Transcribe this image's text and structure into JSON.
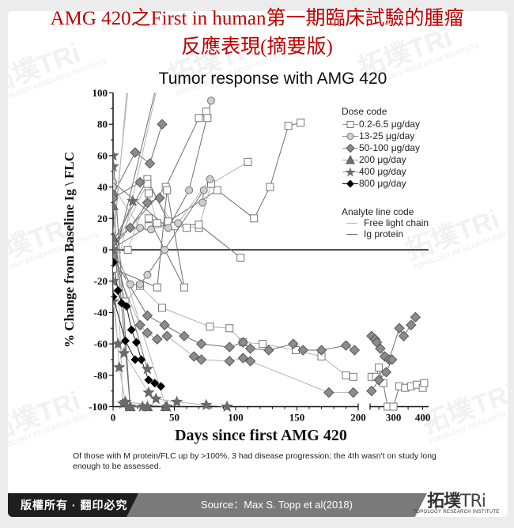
{
  "page": {
    "title_line1": "AMG 420之First in human第一期臨床試驗的腫瘤",
    "title_line2": "反應表現(摘要版)",
    "note": "Of those with M protein/FLC up by >100%, 3 had disease progression; the 4th wasn't on study long enough to be assessed.",
    "footer": {
      "copyright": "版權所有 · 翻印必究",
      "source": "Source：Max S. Topp et al(2018)",
      "logo_zh": "拓墣",
      "logo_tri": "TRi",
      "logo_en": "TOPOLOGY RESEARCH INSTITUTE"
    },
    "watermark": {
      "zh": "拓墣TRi",
      "en": "TOPOLOGY RESEARCH INSTITUTE"
    },
    "colors": {
      "title": "#c00000",
      "diamond": "#8c8c8c",
      "triangle": "#707070",
      "star": "#6a6a6a",
      "circle": "#cfcfcf",
      "footer_dark": "#1e1e1e",
      "footer_mid": "#7a7a7a"
    }
  },
  "legend": {
    "dose_title": "Dose code",
    "dose_items": [
      {
        "label": "0.2-6.5 μg/day",
        "marker": "open-square"
      },
      {
        "label": "13-25 μg/day",
        "marker": "gray-circle"
      },
      {
        "label": "50-100 μg/day",
        "marker": "gray-diamond"
      },
      {
        "label": "200 μg/day",
        "marker": "gray-triangle"
      },
      {
        "label": "400 μg/day",
        "marker": "gray-star"
      },
      {
        "label": "800 μg/day",
        "marker": "black-diamond"
      }
    ],
    "analyte_title": "Analyte line code",
    "analyte_items": [
      {
        "label": "Free light chain",
        "line_color": "#b0b0b0"
      },
      {
        "label": "Ig protein",
        "line_color": "#707070"
      }
    ]
  },
  "chart_data": {
    "type": "line",
    "title": "Tumor response with AMG 420",
    "xlabel": "Days since first AMG 420",
    "ylabel": "% Change from Baseline  Ig \\ FLC",
    "ylim": [
      -100,
      100
    ],
    "yticks": [
      100,
      80,
      60,
      40,
      20,
      0,
      -20,
      -40,
      -60,
      -80,
      -100
    ],
    "xticks_left": [
      0,
      50,
      100,
      150,
      200
    ],
    "xticks_right": [
      300,
      400
    ],
    "xlim_segments": [
      [
        0,
        200
      ],
      [
        220,
        420
      ]
    ],
    "grid": false,
    "reference_line_y": 0,
    "legend_position": "upper right",
    "series": [
      {
        "name": "0.2-6.5 A",
        "marker": "open-square",
        "line": "ig",
        "points": [
          [
            0,
            5
          ],
          [
            28,
            45
          ],
          [
            45,
            18
          ],
          [
            85,
            38
          ],
          [
            115,
            20
          ],
          [
            128,
            40
          ],
          [
            143,
            79
          ],
          [
            153,
            81
          ]
        ]
      },
      {
        "name": "0.2-6.5 B",
        "marker": "open-square",
        "line": "flc",
        "points": [
          [
            0,
            0
          ],
          [
            28,
            42
          ],
          [
            50,
            15
          ],
          [
            70,
            14
          ],
          [
            80,
            42
          ],
          [
            110,
            56
          ]
        ]
      },
      {
        "name": "0.2-6.5 C",
        "marker": "open-square",
        "line": "ig",
        "points": [
          [
            0,
            2
          ],
          [
            43,
            40
          ],
          [
            70,
            84
          ],
          [
            76,
            88
          ],
          [
            77,
            84
          ]
        ]
      },
      {
        "name": "0.2-6.5 D",
        "marker": "open-square",
        "line": "ig",
        "points": [
          [
            0,
            1
          ],
          [
            29,
            15
          ],
          [
            70,
            16
          ],
          [
            104,
            -5
          ]
        ]
      },
      {
        "name": "0.2-6.5 E",
        "marker": "open-square",
        "line": "flc",
        "points": [
          [
            0,
            -4
          ],
          [
            10,
            -33
          ],
          [
            22,
            -23
          ],
          [
            40,
            -37
          ],
          [
            79,
            -49
          ],
          [
            95,
            -50
          ],
          [
            106,
            -59
          ],
          [
            122,
            -60
          ],
          [
            149,
            -64
          ],
          [
            170,
            -68
          ],
          [
            190,
            -80
          ],
          [
            196,
            -81
          ]
        ]
      },
      {
        "name": "0.2-6.5 F",
        "marker": "open-square",
        "line": "ig",
        "points": [
          [
            0,
            -12
          ],
          [
            36,
            -24
          ],
          [
            44,
            38
          ],
          [
            58,
            -24
          ],
          [
            29,
            20
          ]
        ]
      },
      {
        "name": "0.2-6.5 G",
        "marker": "open-square",
        "line": "flc",
        "points": [
          [
            0,
            -2
          ],
          [
            12,
            0
          ],
          [
            29,
            36
          ],
          [
            36,
            17
          ],
          [
            60,
            14
          ]
        ]
      },
      {
        "name": "0.2-6.5 late",
        "marker": "open-square",
        "line": "ig",
        "points": [
          [
            225,
            -81
          ],
          [
            240,
            -81
          ],
          [
            250,
            -75
          ],
          [
            265,
            -85
          ],
          [
            280,
            -100
          ],
          [
            300,
            -100
          ],
          [
            320,
            -87
          ],
          [
            340,
            -88
          ],
          [
            360,
            -87
          ],
          [
            380,
            -86
          ],
          [
            400,
            -88
          ],
          [
            405,
            -85
          ]
        ]
      },
      {
        "name": "13-25 A",
        "marker": "gray-circle",
        "line": "ig",
        "points": [
          [
            0,
            43
          ],
          [
            45,
            14
          ],
          [
            62,
            38
          ],
          [
            80,
            95
          ]
        ]
      },
      {
        "name": "13-25 B",
        "marker": "gray-circle",
        "line": "flc",
        "points": [
          [
            0,
            40
          ],
          [
            22,
            14
          ],
          [
            31,
            13
          ],
          [
            53,
            17
          ],
          [
            79,
            45
          ]
        ]
      },
      {
        "name": "13-25 C",
        "marker": "gray-circle",
        "line": "ig",
        "points": [
          [
            0,
            0
          ],
          [
            14,
            -22
          ],
          [
            22,
            -22
          ],
          [
            28,
            -16
          ],
          [
            42,
            0
          ],
          [
            74,
            38
          ],
          [
            73,
            30
          ]
        ]
      },
      {
        "name": "50-100 A",
        "marker": "gray-diamond",
        "line": "ig",
        "points": [
          [
            0,
            35
          ],
          [
            18,
            62
          ],
          [
            30,
            55
          ],
          [
            40,
            80
          ]
        ]
      },
      {
        "name": "50-100 B",
        "marker": "gray-diamond",
        "line": "ig",
        "points": [
          [
            0,
            33
          ],
          [
            22,
            43
          ]
        ]
      },
      {
        "name": "50-100 C",
        "marker": "gray-diamond",
        "line": "ig",
        "points": [
          [
            0,
            5
          ],
          [
            14,
            14
          ],
          [
            28,
            30
          ],
          [
            38,
            33
          ]
        ]
      },
      {
        "name": "50-100 D",
        "marker": "gray-diamond",
        "line": "ig",
        "points": [
          [
            0,
            -5
          ],
          [
            28,
            -42
          ],
          [
            42,
            -48
          ],
          [
            58,
            -55
          ],
          [
            72,
            -60
          ],
          [
            95,
            -62
          ],
          [
            106,
            -59
          ],
          [
            112,
            -63
          ],
          [
            127,
            -64
          ],
          [
            147,
            -60
          ],
          [
            155,
            -64
          ],
          [
            170,
            -64
          ],
          [
            190,
            -61
          ],
          [
            197,
            -64
          ]
        ]
      },
      {
        "name": "50-100 E",
        "marker": "gray-diamond",
        "line": "flc",
        "points": [
          [
            0,
            -8
          ],
          [
            22,
            -48
          ],
          [
            28,
            -53
          ],
          [
            36,
            -57
          ],
          [
            44,
            -55
          ],
          [
            66,
            -68
          ],
          [
            72,
            -70
          ],
          [
            95,
            -71
          ],
          [
            106,
            -69
          ],
          [
            112,
            -71
          ],
          [
            176,
            -91
          ],
          [
            196,
            -91
          ]
        ]
      },
      {
        "name": "50-100 late A",
        "marker": "gray-diamond",
        "line": "ig",
        "points": [
          [
            225,
            -55
          ],
          [
            237,
            -57
          ],
          [
            243,
            -59
          ],
          [
            255,
            -63
          ],
          [
            270,
            -68
          ],
          [
            285,
            -70
          ],
          [
            320,
            -50
          ],
          [
            335,
            -55
          ],
          [
            360,
            -48
          ],
          [
            375,
            -43
          ]
        ]
      },
      {
        "name": "50-100 late B",
        "marker": "gray-diamond",
        "line": "ig",
        "points": [
          [
            225,
            -90
          ],
          [
            250,
            -83
          ],
          [
            275,
            -78
          ],
          [
            295,
            -70
          ]
        ]
      },
      {
        "name": "200 A",
        "marker": "gray-triangle",
        "line": "ig",
        "points": [
          [
            0,
            28
          ],
          [
            14,
            -100
          ],
          [
            28,
            -100
          ]
        ]
      },
      {
        "name": "200 B",
        "marker": "gray-triangle",
        "line": "flc",
        "points": [
          [
            0,
            8
          ],
          [
            43,
            -100
          ]
        ]
      },
      {
        "name": "400 A",
        "marker": "gray-star",
        "line": "ig",
        "points": [
          [
            0,
            60
          ],
          [
            14,
            -100
          ],
          [
            28,
            -100
          ]
        ]
      },
      {
        "name": "400 B",
        "marker": "gray-star",
        "line": "flc",
        "points": [
          [
            0,
            53
          ],
          [
            8,
            -98
          ],
          [
            24,
            -100
          ]
        ]
      },
      {
        "name": "400 C",
        "marker": "gray-star",
        "line": "ig",
        "points": [
          [
            16,
            31
          ],
          [
            0,
            0
          ],
          [
            28,
            -76
          ]
        ]
      },
      {
        "name": "400 D",
        "marker": "gray-star",
        "line": "flc",
        "points": [
          [
            0,
            -33
          ],
          [
            4,
            -60
          ],
          [
            9,
            -66
          ],
          [
            29,
            -91
          ],
          [
            35,
            -95
          ],
          [
            52,
            -97
          ],
          [
            76,
            -99
          ],
          [
            93,
            -100
          ]
        ]
      },
      {
        "name": "400 E",
        "marker": "gray-star",
        "line": "flc",
        "points": [
          [
            0,
            -20
          ],
          [
            5,
            -75
          ],
          [
            10,
            -97
          ],
          [
            44,
            -100
          ]
        ]
      },
      {
        "name": "800 A",
        "marker": "black-diamond",
        "line": "ig",
        "points": [
          [
            0,
            -8
          ],
          [
            4,
            -26
          ],
          [
            7,
            -34
          ],
          [
            11,
            -36
          ],
          [
            15,
            -51
          ],
          [
            19,
            -59
          ],
          [
            23,
            -70
          ],
          [
            29,
            -83
          ],
          [
            34,
            -85
          ],
          [
            39,
            -87
          ]
        ]
      },
      {
        "name": "800 B",
        "marker": "black-diamond",
        "line": "ig",
        "points": [
          [
            0,
            -30
          ],
          [
            10,
            -58
          ],
          [
            18,
            -70
          ]
        ]
      },
      {
        "name": "steep lines",
        "marker": "none",
        "line": "flc",
        "points": [
          [
            0,
            0
          ],
          [
            11,
            100
          ]
        ]
      },
      {
        "name": "steep lines 2",
        "marker": "none",
        "line": "flc",
        "points": [
          [
            0,
            10
          ],
          [
            12,
            100
          ]
        ]
      },
      {
        "name": "steep lines 3",
        "marker": "none",
        "line": "ig",
        "points": [
          [
            3,
            0
          ],
          [
            34,
            100
          ]
        ]
      },
      {
        "name": "steep lines 4",
        "marker": "none",
        "line": "flc",
        "points": [
          [
            5,
            -5
          ],
          [
            35,
            100
          ]
        ]
      }
    ]
  }
}
